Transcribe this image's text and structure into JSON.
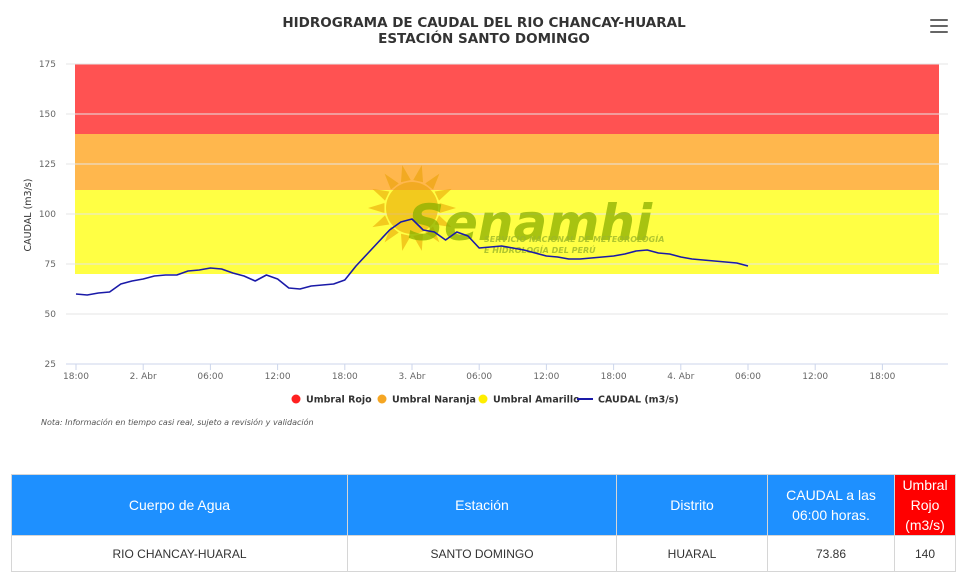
{
  "chart_data": {
    "type": "line",
    "title": "HIDROGRAMA DE CAUDAL DEL RIO CHANCAY-HUARAL",
    "subtitle": "ESTACIÓN SANTO DOMINGO",
    "ylabel": "CAUDAL (m3/s)",
    "ylim": [
      25,
      175
    ],
    "yticks": [
      "25",
      "50",
      "75",
      "100",
      "125",
      "150",
      "175"
    ],
    "x_unit": "hours since 1 Apr 18:00",
    "xlim": [
      0,
      78
    ],
    "xticks": [
      {
        "x": 0,
        "label": "18:00"
      },
      {
        "x": 6,
        "label": "2. Abr"
      },
      {
        "x": 12,
        "label": "06:00"
      },
      {
        "x": 18,
        "label": "12:00"
      },
      {
        "x": 24,
        "label": "18:00"
      },
      {
        "x": 30,
        "label": "3. Abr"
      },
      {
        "x": 36,
        "label": "06:00"
      },
      {
        "x": 42,
        "label": "12:00"
      },
      {
        "x": 48,
        "label": "18:00"
      },
      {
        "x": 54,
        "label": "4. Abr"
      },
      {
        "x": 60,
        "label": "06:00"
      },
      {
        "x": 66,
        "label": "12:00"
      },
      {
        "x": 72,
        "label": "18:00"
      }
    ],
    "bands": [
      {
        "name": "Umbral Rojo",
        "from": 140,
        "to": 175,
        "color": "#ff5252"
      },
      {
        "name": "Umbral Naranja",
        "from": 112,
        "to": 140,
        "color": "#ffb74d"
      },
      {
        "name": "Umbral Amarillo",
        "from": 70,
        "to": 112,
        "color": "#ffff44"
      }
    ],
    "series": [
      {
        "name": "CAUDAL (m3/s)",
        "color": "#1a1aa8",
        "points": [
          [
            0,
            60
          ],
          [
            1,
            59.5
          ],
          [
            2,
            60.5
          ],
          [
            3,
            61
          ],
          [
            4,
            65
          ],
          [
            5,
            66.5
          ],
          [
            6,
            67.5
          ],
          [
            7,
            69
          ],
          [
            8,
            69.5
          ],
          [
            9,
            69.5
          ],
          [
            10,
            71.5
          ],
          [
            11,
            72
          ],
          [
            12,
            73
          ],
          [
            13,
            72.5
          ],
          [
            14,
            70.5
          ],
          [
            15,
            69
          ],
          [
            16,
            66.5
          ],
          [
            17,
            69.5
          ],
          [
            18,
            67.5
          ],
          [
            19,
            63
          ],
          [
            20,
            62.5
          ],
          [
            21,
            64
          ],
          [
            22,
            64.5
          ],
          [
            23,
            65
          ],
          [
            24,
            67
          ],
          [
            25,
            74
          ],
          [
            26,
            80
          ],
          [
            27,
            86
          ],
          [
            28,
            92
          ],
          [
            29,
            96
          ],
          [
            30,
            97.5
          ],
          [
            31,
            92
          ],
          [
            32,
            91
          ],
          [
            33,
            87
          ],
          [
            34,
            91
          ],
          [
            35,
            89
          ],
          [
            36,
            83
          ],
          [
            37,
            83.5
          ],
          [
            38,
            84
          ],
          [
            39,
            83
          ],
          [
            40,
            82
          ],
          [
            41,
            80.5
          ],
          [
            42,
            79
          ],
          [
            43,
            78.5
          ],
          [
            44,
            77.5
          ],
          [
            45,
            77.5
          ],
          [
            46,
            78
          ],
          [
            47,
            78.5
          ],
          [
            48,
            79
          ],
          [
            49,
            80
          ],
          [
            50,
            81.5
          ],
          [
            51,
            82
          ],
          [
            52,
            80.5
          ],
          [
            53,
            80
          ],
          [
            54,
            78.5
          ],
          [
            55,
            77.5
          ],
          [
            56,
            77
          ],
          [
            57,
            76.5
          ],
          [
            58,
            76
          ],
          [
            59,
            75.5
          ],
          [
            60,
            74
          ]
        ]
      }
    ],
    "legend": [
      {
        "label": "Umbral Rojo",
        "color": "#ff2020",
        "kind": "dot"
      },
      {
        "label": "Umbral Naranja",
        "color": "#f5a623",
        "kind": "dot"
      },
      {
        "label": "Umbral Amarillo",
        "color": "#ffee00",
        "kind": "dot"
      },
      {
        "label": "CAUDAL (m3/s)",
        "color": "#1a1aa8",
        "kind": "line"
      }
    ],
    "note": "Nota: Información en tiempo casi real, sujeto a revisión y validación",
    "watermark": {
      "brand": "Senamhi",
      "line1": "SERVICIO NACIONAL DE METEOROLOGÍA",
      "line2": "E HIDROLOGÍA DEL PERÚ"
    }
  },
  "menu_icon": "hamburger-menu-icon",
  "table": {
    "headers": [
      "Cuerpo de Agua",
      "Estación",
      "Distrito",
      "CAUDAL a las 06:00 horas.",
      "Umbral Rojo (m3/s)"
    ],
    "row": [
      "RIO CHANCAY-HUARAL",
      "SANTO DOMINGO",
      "HUARAL",
      "73.86",
      "140"
    ],
    "header_color": "#1e90ff",
    "header_alert_color": "#ff0000"
  }
}
